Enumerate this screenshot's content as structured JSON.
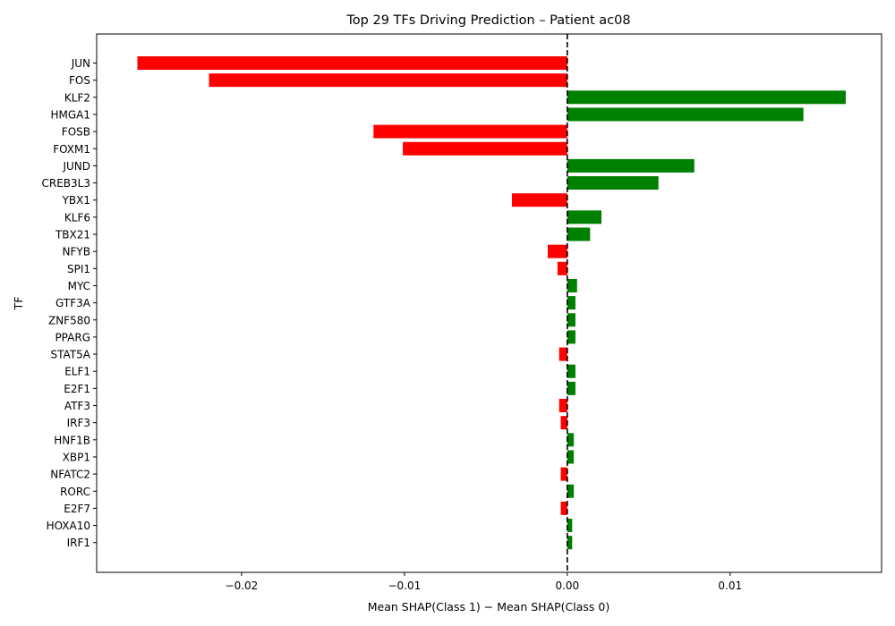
{
  "chart_data": {
    "type": "bar",
    "orientation": "horizontal",
    "title": "Top 29 TFs Driving Prediction – Patient ac08",
    "xlabel": "Mean SHAP(Class 1) − Mean SHAP(Class 0)",
    "ylabel": "TF",
    "xlim": [
      -0.0289,
      0.0193
    ],
    "xticks": [
      -0.02,
      -0.01,
      0.0,
      0.01
    ],
    "xtick_labels": [
      "−0.02",
      "−0.01",
      "0.00",
      "0.01"
    ],
    "reference_line": {
      "x": 0,
      "style": "dashed",
      "color": "#000000"
    },
    "colors": {
      "negative": "#ff0000",
      "positive": "#008000"
    },
    "grid": false,
    "categories": [
      "JUN",
      "FOS",
      "KLF2",
      "HMGA1",
      "FOSB",
      "FOXM1",
      "JUND",
      "CREB3L3",
      "YBX1",
      "KLF6",
      "TBX21",
      "NFYB",
      "SPI1",
      "MYC",
      "GTF3A",
      "ZNF580",
      "PPARG",
      "STAT5A",
      "ELF1",
      "E2F1",
      "ATF3",
      "IRF3",
      "HNF1B",
      "XBP1",
      "NFATC2",
      "RORC",
      "E2F7",
      "HOXA10",
      "IRF1"
    ],
    "values": [
      -0.0264,
      -0.022,
      0.0171,
      0.0145,
      -0.0119,
      -0.0101,
      0.0078,
      0.0056,
      -0.0034,
      0.0021,
      0.0014,
      -0.0012,
      -0.0006,
      0.0006,
      0.0005,
      0.0005,
      0.0005,
      -0.0005,
      0.0005,
      0.0005,
      -0.0005,
      -0.0004,
      0.0004,
      0.0004,
      -0.0004,
      0.0004,
      -0.0004,
      0.0003,
      0.0003
    ]
  }
}
